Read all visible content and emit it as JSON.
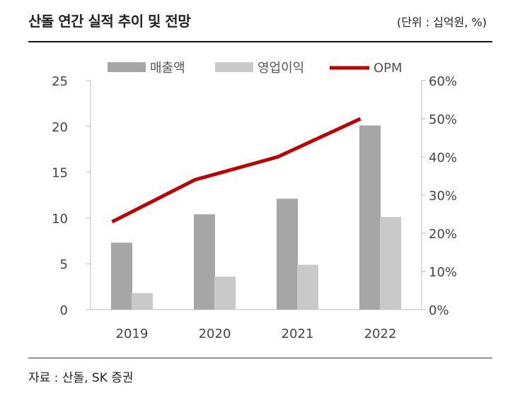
{
  "header": {
    "title": "산돌 연간 실적 추이 및 전망",
    "unit": "(단위 : 십억원, %)"
  },
  "footer": {
    "source": "자료 : 산돌, SK 증권"
  },
  "chart_data": {
    "type": "bar",
    "categories": [
      "2019",
      "2020",
      "2021",
      "2022"
    ],
    "series": [
      {
        "name": "매출액",
        "type": "bar",
        "axis": "left",
        "color": "#a6a6a6",
        "values": [
          7.3,
          10.4,
          12.1,
          20.1
        ]
      },
      {
        "name": "영업이익",
        "type": "bar",
        "axis": "left",
        "color": "#c9c9c9",
        "values": [
          1.8,
          3.6,
          4.9,
          10.1
        ]
      },
      {
        "name": "OPM",
        "type": "line",
        "axis": "right",
        "color": "#c00000",
        "values": [
          23,
          34,
          40,
          50
        ]
      }
    ],
    "y_left": {
      "min": 0,
      "max": 25,
      "ticks": [
        "0",
        "5",
        "10",
        "15",
        "20",
        "25"
      ]
    },
    "y_right": {
      "min": 0,
      "max": 60,
      "ticks": [
        "0%",
        "10%",
        "20%",
        "30%",
        "40%",
        "50%",
        "60%"
      ]
    },
    "legend_position": "top",
    "grid": false
  }
}
